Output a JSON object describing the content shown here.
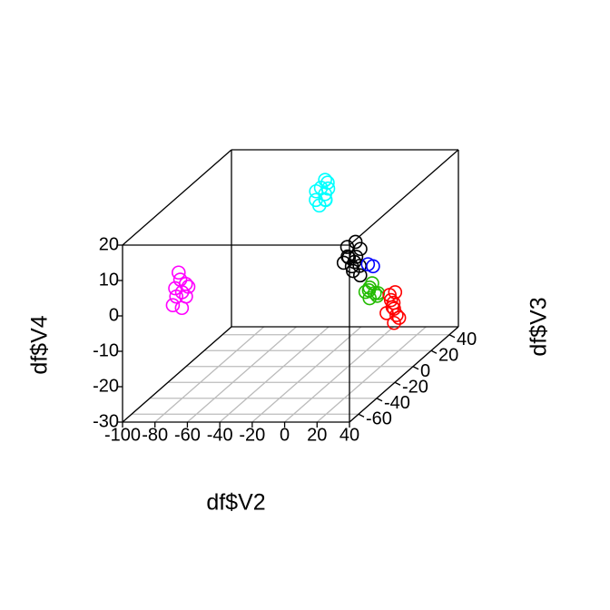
{
  "chart_data": {
    "type": "scatter3d",
    "xlabel": "df$V2",
    "ylabel": "df$V3",
    "zlabel": "df$V4",
    "xlim": [
      -100,
      40
    ],
    "ylim": [
      -70,
      50
    ],
    "zlim": [
      -30,
      20
    ],
    "xticks": [
      -100,
      -80,
      -60,
      -40,
      -20,
      0,
      20,
      40
    ],
    "yticks": [
      -60,
      -40,
      -20,
      0,
      20,
      40
    ],
    "zticks": [
      -30,
      -20,
      -10,
      0,
      10,
      20
    ],
    "grid": true,
    "series": [
      {
        "color": "#ff00ff",
        "x": [
          -71,
          -66,
          -73,
          -69,
          -72,
          -65,
          -70,
          -74,
          -67,
          -70
        ],
        "y": [
          -60,
          -61,
          -59,
          -60,
          -62,
          -60,
          -58,
          -61,
          -59,
          -60
        ],
        "z": [
          10,
          7,
          3,
          0,
          6,
          6,
          4,
          1,
          3,
          8
        ]
      },
      {
        "color": "#00ffff",
        "x": [
          -28,
          -25,
          -30,
          -26,
          -23,
          -29,
          -27,
          -24,
          -31,
          -26
        ],
        "y": [
          20,
          22,
          18,
          21,
          19,
          20,
          23,
          18,
          20,
          21
        ],
        "z": [
          16,
          17,
          13,
          14,
          16,
          11,
          12,
          13,
          15,
          18
        ]
      },
      {
        "color": "#000000",
        "x": [
          6,
          9,
          12,
          8,
          10,
          5,
          11,
          7,
          13,
          9,
          4,
          10
        ],
        "y": [
          -10,
          -12,
          -8,
          -9,
          -11,
          -10,
          -7,
          -13,
          -10,
          -8,
          -12,
          -9
        ],
        "z": [
          3,
          1,
          5,
          -1,
          2,
          6,
          0,
          4,
          -2,
          7,
          2,
          3
        ]
      },
      {
        "color": "#0000ff",
        "x": [
          15,
          17
        ],
        "y": [
          -5,
          -3
        ],
        "z": [
          0,
          -1
        ]
      },
      {
        "color": "#22bb00",
        "x": [
          24,
          27,
          25,
          28,
          23,
          26,
          29,
          25
        ],
        "y": [
          -20,
          -19,
          -21,
          -18,
          -22,
          -20,
          -19,
          -21
        ],
        "z": [
          -4,
          -5,
          -3,
          -6,
          -4,
          -2,
          -5,
          -6
        ]
      },
      {
        "color": "#ff0000",
        "x": [
          32,
          35,
          30,
          36,
          33,
          37,
          31,
          34,
          35,
          33
        ],
        "y": [
          -10,
          -12,
          -8,
          -11,
          -9,
          -10,
          -13,
          -9,
          -12,
          -10
        ],
        "z": [
          -9,
          -11,
          -8,
          -13,
          -10,
          -14,
          -12,
          -7,
          -15,
          -11
        ]
      }
    ]
  }
}
